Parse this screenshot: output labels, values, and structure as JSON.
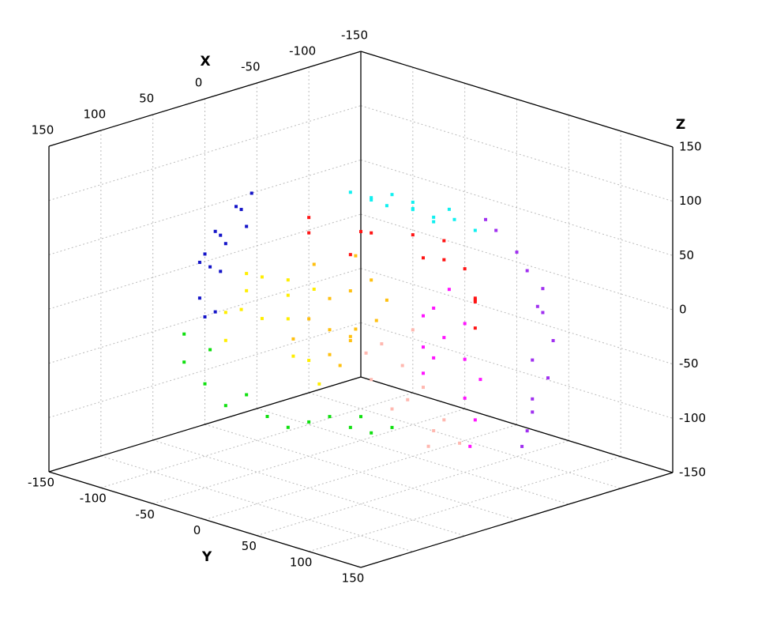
{
  "chart_data": {
    "type": "scatter3d",
    "xlabel": "X",
    "ylabel": "Y",
    "zlabel": "Z",
    "xlim": [
      -150,
      150
    ],
    "ylim": [
      -150,
      150
    ],
    "zlim": [
      -150,
      150
    ],
    "xticks": [
      -150,
      -100,
      -50,
      0,
      50,
      100,
      150
    ],
    "yticks": [
      -150,
      -100,
      -50,
      0,
      50,
      100,
      150
    ],
    "zticks": [
      -150,
      -100,
      -50,
      0,
      50,
      100,
      150
    ],
    "grid": true,
    "series": [
      {
        "color": "#1414c8",
        "x": [
          30,
          50,
          20,
          40,
          60,
          10,
          35,
          55,
          25,
          70,
          45,
          15,
          65,
          40
        ],
        "y": [
          -100,
          -90,
          -95,
          -105,
          -95,
          -100,
          -85,
          -100,
          -110,
          -80,
          -90,
          -90,
          -85,
          -100
        ],
        "z": [
          40,
          60,
          70,
          20,
          0,
          50,
          80,
          30,
          10,
          -10,
          55,
          85,
          45,
          -20
        ]
      },
      {
        "color": "#10e010",
        "x": [
          90,
          80,
          60,
          40,
          20,
          10,
          0,
          30,
          70,
          100,
          90,
          50,
          15,
          85
        ],
        "y": [
          -60,
          -50,
          -30,
          -10,
          10,
          20,
          30,
          0,
          -40,
          -70,
          -80,
          -20,
          15,
          -60
        ],
        "z": [
          -60,
          -80,
          -90,
          -95,
          -100,
          -105,
          -100,
          -90,
          -70,
          -40,
          -20,
          -100,
          -90,
          -30
        ]
      },
      {
        "color": "#ffee00",
        "x": [
          50,
          70,
          60,
          40,
          80,
          30,
          55,
          65,
          45,
          20,
          35,
          75,
          50,
          25
        ],
        "y": [
          -20,
          -60,
          -50,
          -30,
          -50,
          -40,
          -10,
          -30,
          -50,
          -30,
          -5,
          -40,
          -60,
          -20
        ],
        "z": [
          0,
          0,
          20,
          30,
          -20,
          10,
          -30,
          40,
          -10,
          -50,
          -60,
          10,
          30,
          20
        ]
      },
      {
        "color": "#10f0f0",
        "x": [
          -30,
          -10,
          -50,
          0,
          -20,
          -40,
          -60,
          -5,
          -35,
          -15,
          -45,
          -25,
          -55
        ],
        "y": [
          20,
          0,
          40,
          -10,
          30,
          10,
          50,
          20,
          35,
          -5,
          25,
          5,
          30
        ],
        "z": [
          90,
          100,
          80,
          105,
          95,
          90,
          70,
          100,
          85,
          95,
          75,
          100,
          85
        ]
      },
      {
        "color": "#ff1414",
        "x": [
          -60,
          -20,
          -40,
          -80,
          -70,
          -50,
          -30,
          -90,
          -60,
          -10,
          -40,
          -80,
          -50,
          0
        ],
        "y": [
          0,
          -20,
          -30,
          20,
          40,
          30,
          -40,
          20,
          50,
          -60,
          10,
          0,
          60,
          -50
        ],
        "z": [
          30,
          60,
          50,
          20,
          0,
          40,
          30,
          -10,
          -20,
          50,
          60,
          40,
          10,
          70
        ]
      },
      {
        "color": "#ffc010",
        "x": [
          30,
          20,
          40,
          10,
          35,
          15,
          25,
          0,
          45,
          5,
          20,
          -10,
          30,
          10,
          -5
        ],
        "y": [
          0,
          10,
          -10,
          0,
          5,
          -15,
          20,
          10,
          -20,
          -5,
          -25,
          15,
          10,
          25,
          -10
        ],
        "z": [
          -10,
          -20,
          0,
          20,
          -30,
          10,
          -5,
          30,
          -20,
          -25,
          40,
          10,
          -40,
          0,
          45
        ]
      },
      {
        "color": "#ffb8b0",
        "x": [
          0,
          10,
          -10,
          5,
          -20,
          -15,
          0,
          15,
          -5,
          -25,
          20,
          -10
        ],
        "y": [
          40,
          30,
          50,
          35,
          60,
          55,
          45,
          20,
          60,
          70,
          30,
          40
        ],
        "z": [
          -40,
          -20,
          -60,
          -80,
          -90,
          -100,
          -70,
          -30,
          -110,
          -110,
          -50,
          -10
        ]
      },
      {
        "color": "#ff14ff",
        "x": [
          -30,
          -20,
          -40,
          -10,
          -30,
          -20,
          -45,
          -15,
          -35,
          -25,
          -5,
          -40,
          -50
        ],
        "y": [
          50,
          40,
          60,
          60,
          70,
          50,
          55,
          45,
          75,
          80,
          55,
          45,
          65
        ],
        "z": [
          -20,
          0,
          -40,
          -30,
          -70,
          10,
          -10,
          -50,
          -90,
          -110,
          -20,
          20,
          -60
        ]
      },
      {
        "color": "#a030f0",
        "x": [
          -90,
          -80,
          -70,
          -95,
          -85,
          -75,
          -90,
          -60,
          -100,
          -80,
          -65,
          -95,
          -70,
          -50
        ],
        "y": [
          80,
          70,
          60,
          90,
          95,
          90,
          70,
          100,
          75,
          85,
          55,
          80,
          95,
          105
        ],
        "z": [
          0,
          50,
          70,
          -30,
          -60,
          -90,
          30,
          -100,
          -10,
          -45,
          80,
          15,
          -75,
          -110
        ]
      }
    ]
  }
}
